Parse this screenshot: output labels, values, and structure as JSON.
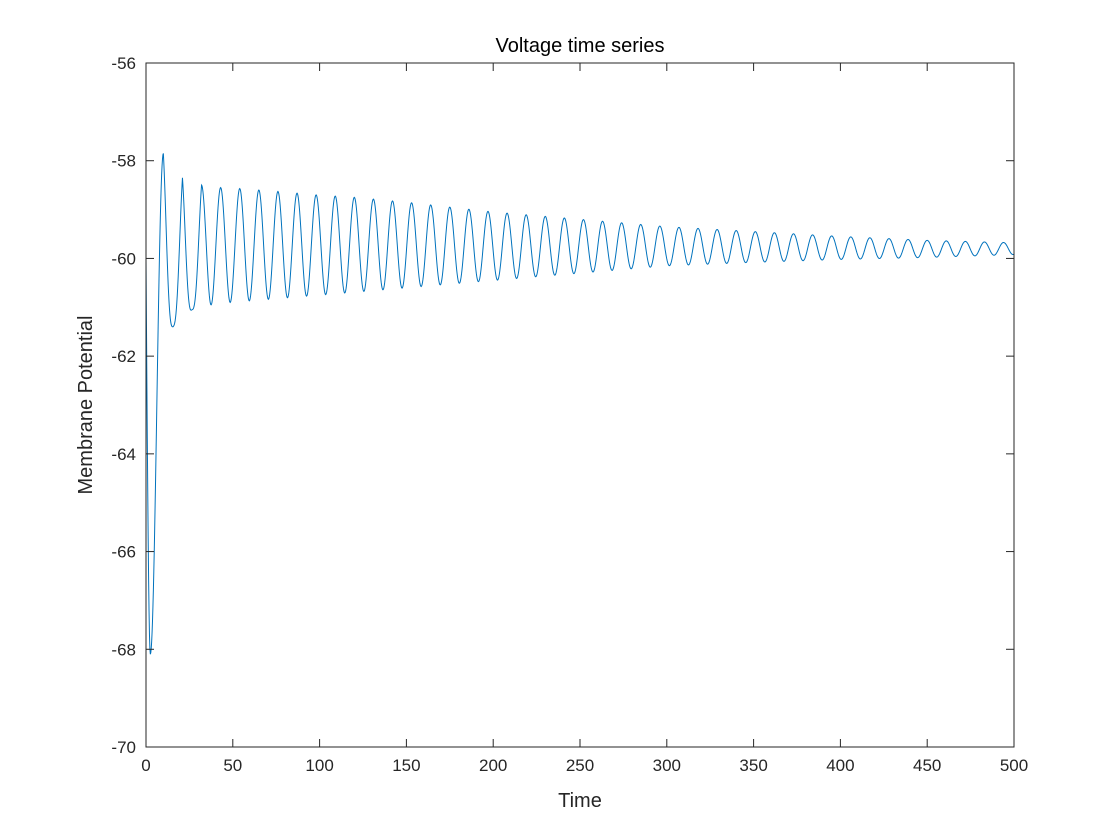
{
  "chart_data": {
    "type": "line",
    "title": "Voltage time series",
    "xlabel": "Time",
    "ylabel": "Membrane Potential",
    "xlim": [
      0,
      500
    ],
    "ylim": [
      -70,
      -56
    ],
    "xticks": [
      0,
      50,
      100,
      150,
      200,
      250,
      300,
      350,
      400,
      450,
      500
    ],
    "yticks": [
      -70,
      -68,
      -66,
      -64,
      -62,
      -60,
      -58,
      -56
    ],
    "grid": false,
    "box": true,
    "series": [
      {
        "color": "#0072bd",
        "oscillation_period": 11,
        "points": [
          [
            0,
            -60.0
          ],
          [
            2.5,
            -68.1
          ],
          [
            10,
            -57.85
          ],
          [
            15.5,
            -61.4
          ],
          [
            21,
            -58.35
          ],
          [
            26.5,
            -61.05
          ],
          [
            32,
            -58.5
          ],
          [
            43,
            -58.55
          ],
          [
            54,
            -58.57
          ],
          [
            65,
            -58.6
          ],
          [
            76,
            -58.63
          ],
          [
            98,
            -58.7
          ],
          [
            120,
            -58.75
          ],
          [
            150,
            -58.85
          ],
          [
            200,
            -59.05
          ],
          [
            250,
            -59.2
          ],
          [
            300,
            -59.35
          ],
          [
            350,
            -59.45
          ],
          [
            400,
            -59.55
          ],
          [
            450,
            -59.63
          ],
          [
            500,
            -59.68
          ]
        ],
        "troughs": [
          [
            48.5,
            -60.9
          ],
          [
            100,
            -60.75
          ],
          [
            150,
            -60.6
          ],
          [
            200,
            -60.45
          ],
          [
            250,
            -60.3
          ],
          [
            300,
            -60.15
          ],
          [
            350,
            -60.08
          ],
          [
            400,
            -60.02
          ],
          [
            450,
            -59.98
          ],
          [
            500,
            -59.92
          ]
        ]
      }
    ]
  }
}
